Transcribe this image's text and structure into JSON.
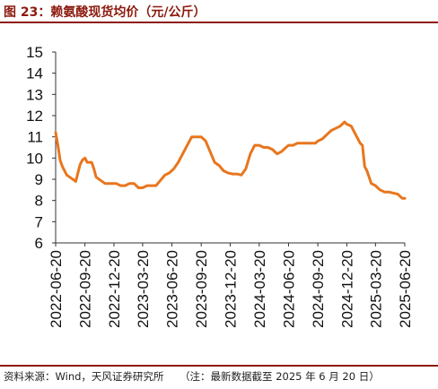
{
  "header": {
    "title": "图 23：赖氨酸现货均价（元/公斤）"
  },
  "footer": {
    "source": "资料来源：Wind，天风证券研究所",
    "note": "（注：最新数据截至 2025 年 6 月 20 日）"
  },
  "chart_data": {
    "type": "line",
    "title": "",
    "xlabel": "",
    "ylabel": "",
    "ylim": [
      6,
      15
    ],
    "yticks": [
      6,
      7,
      8,
      9,
      10,
      11,
      12,
      13,
      14,
      15
    ],
    "xticks": [
      "2022-06-20",
      "2022-09-20",
      "2022-12-20",
      "2023-03-20",
      "2023-06-20",
      "2023-09-20",
      "2023-12-20",
      "2024-03-20",
      "2024-06-20",
      "2024-09-20",
      "2024-12-20",
      "2025-03-20",
      "2025-06-20"
    ],
    "grid": false,
    "legend": "none",
    "line_color": "#e8761e",
    "series": [
      {
        "x": [
          "2022-06-20",
          "2022-06-27",
          "2022-07-04",
          "2022-07-11",
          "2022-07-25",
          "2022-08-08",
          "2022-08-22",
          "2022-09-05",
          "2022-09-12",
          "2022-09-20",
          "2022-09-27",
          "2022-10-04",
          "2022-10-11",
          "2022-10-18",
          "2022-10-25",
          "2022-11-08",
          "2022-11-22",
          "2022-12-06",
          "2022-12-20",
          "2022-12-27",
          "2023-01-10",
          "2023-01-24",
          "2023-02-07",
          "2023-02-21",
          "2023-03-07",
          "2023-03-20",
          "2023-04-03",
          "2023-04-17",
          "2023-05-01",
          "2023-05-15",
          "2023-05-29",
          "2023-06-12",
          "2023-06-26",
          "2023-07-10",
          "2023-07-24",
          "2023-08-07",
          "2023-08-21",
          "2023-09-04",
          "2023-09-20",
          "2023-10-04",
          "2023-10-18",
          "2023-11-01",
          "2023-11-15",
          "2023-11-29",
          "2023-12-13",
          "2023-12-27",
          "2024-01-10",
          "2024-01-24",
          "2024-02-07",
          "2024-02-21",
          "2024-03-06",
          "2024-03-20",
          "2024-04-03",
          "2024-04-17",
          "2024-05-01",
          "2024-05-15",
          "2024-05-29",
          "2024-06-12",
          "2024-06-20",
          "2024-07-04",
          "2024-07-18",
          "2024-08-01",
          "2024-08-15",
          "2024-08-29",
          "2024-09-12",
          "2024-09-20",
          "2024-10-04",
          "2024-10-18",
          "2024-11-01",
          "2024-11-15",
          "2024-11-29",
          "2024-12-13",
          "2024-12-20",
          "2025-01-03",
          "2025-01-17",
          "2025-01-31",
          "2025-02-07",
          "2025-02-14",
          "2025-02-21",
          "2025-03-07",
          "2025-03-20",
          "2025-04-03",
          "2025-04-17",
          "2025-05-01",
          "2025-05-15",
          "2025-05-29",
          "2025-06-12",
          "2025-06-20"
        ],
        "y": [
          11.2,
          10.6,
          9.9,
          9.6,
          9.2,
          9.05,
          8.9,
          9.7,
          9.9,
          10.0,
          9.8,
          9.8,
          9.8,
          9.5,
          9.1,
          8.95,
          8.8,
          8.8,
          8.8,
          8.8,
          8.7,
          8.7,
          8.8,
          8.8,
          8.6,
          8.6,
          8.7,
          8.7,
          8.7,
          8.95,
          9.2,
          9.3,
          9.5,
          9.8,
          10.2,
          10.6,
          11.0,
          11.0,
          11.0,
          10.8,
          10.3,
          9.8,
          9.65,
          9.4,
          9.3,
          9.25,
          9.25,
          9.2,
          9.5,
          10.2,
          10.6,
          10.6,
          10.5,
          10.5,
          10.4,
          10.2,
          10.3,
          10.5,
          10.6,
          10.6,
          10.7,
          10.7,
          10.7,
          10.7,
          10.7,
          10.8,
          10.9,
          11.1,
          11.3,
          11.4,
          11.5,
          11.7,
          11.6,
          11.5,
          11.1,
          10.7,
          10.6,
          9.6,
          9.4,
          8.8,
          8.7,
          8.5,
          8.4,
          8.4,
          8.35,
          8.3,
          8.1,
          8.1
        ]
      }
    ]
  }
}
